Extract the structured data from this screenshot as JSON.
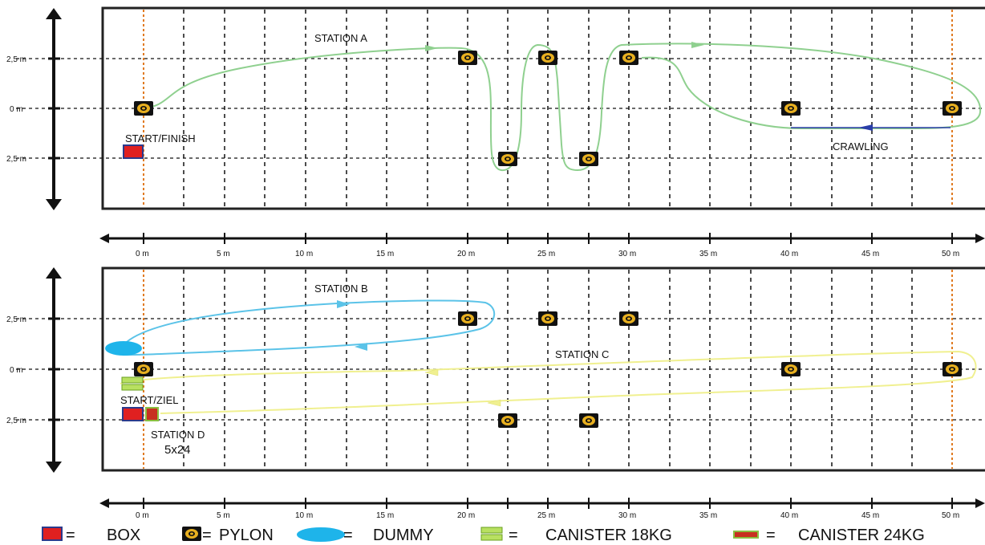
{
  "top_field": {
    "y_labels": [
      "2,5 m",
      "0 m",
      "2,5 m"
    ],
    "x_labels": [
      "0 m",
      "5 m",
      "10 m",
      "15 m",
      "20 m",
      "25 m",
      "30 m",
      "35 m",
      "40 m",
      "45 m",
      "50 m"
    ],
    "station_label": "STATION A",
    "start_label": "START/FINISH",
    "crawling_label": "CRAWLING"
  },
  "bottom_field": {
    "y_labels": [
      "2,5 m",
      "0 m",
      "2,5 m"
    ],
    "x_labels": [
      "0 m",
      "5 m",
      "10 m",
      "15 m",
      "20 m",
      "25 m",
      "30 m",
      "35 m",
      "40 m",
      "45 m",
      "50 m"
    ],
    "station_b_label": "STATION B",
    "station_c_label": "STATION C",
    "start_label": "START/ZIEL",
    "station_d_label": "STATION D",
    "station_d_reps": "5x24"
  },
  "legend": {
    "box": "BOX",
    "pylon": "PYLON",
    "dummy": "DUMMY",
    "canister18": "CANISTER 18KG",
    "canister24": "CANISTER 24KG",
    "equals": "="
  },
  "colors": {
    "box": "#e02020",
    "box_border": "#2b3a8c",
    "pylon_fill": "#e8b020",
    "dummy": "#1eb4ea",
    "canister18": "#b8e060",
    "canister24": "#c83020",
    "path_a": "#8fd08f",
    "path_b": "#5bc3e8",
    "path_c": "#f0f090",
    "crawl": "#2a3ea8",
    "start_line": "#e07a20"
  }
}
